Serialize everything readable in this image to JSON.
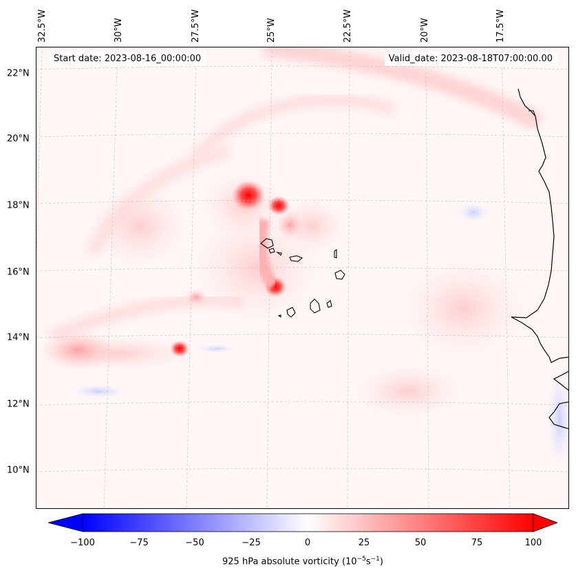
{
  "map": {
    "start_date": "Start date: 2023-08-16_00:00:00",
    "valid_date": "Valid_date: 2023-08-18T07:00:00.00",
    "lat_labels": [
      "22°N",
      "20°N",
      "18°N",
      "16°N",
      "14°N",
      "12°N",
      "10°N"
    ],
    "lon_labels": [
      "32.5°W",
      "30°W",
      "27.5°W",
      "25°W",
      "22.5°W",
      "20°W",
      "17.5°W"
    ],
    "features": [
      "vorticity-field",
      "west-africa-coastline",
      "cape-verde-islands",
      "graticule"
    ]
  },
  "colorbar": {
    "label_prefix": "925 hPa absolute vorticity (10",
    "label_exp1": "−5",
    "label_mid": "s",
    "label_exp2": "−1",
    "label_suffix": ")",
    "ticks": [
      "−100",
      "−75",
      "−50",
      "−25",
      "0",
      "25",
      "50",
      "75",
      "100"
    ],
    "min": -100,
    "max": 100,
    "low_color": "#0000ff",
    "mid_color": "#ffffff",
    "high_color": "#ff0000"
  }
}
